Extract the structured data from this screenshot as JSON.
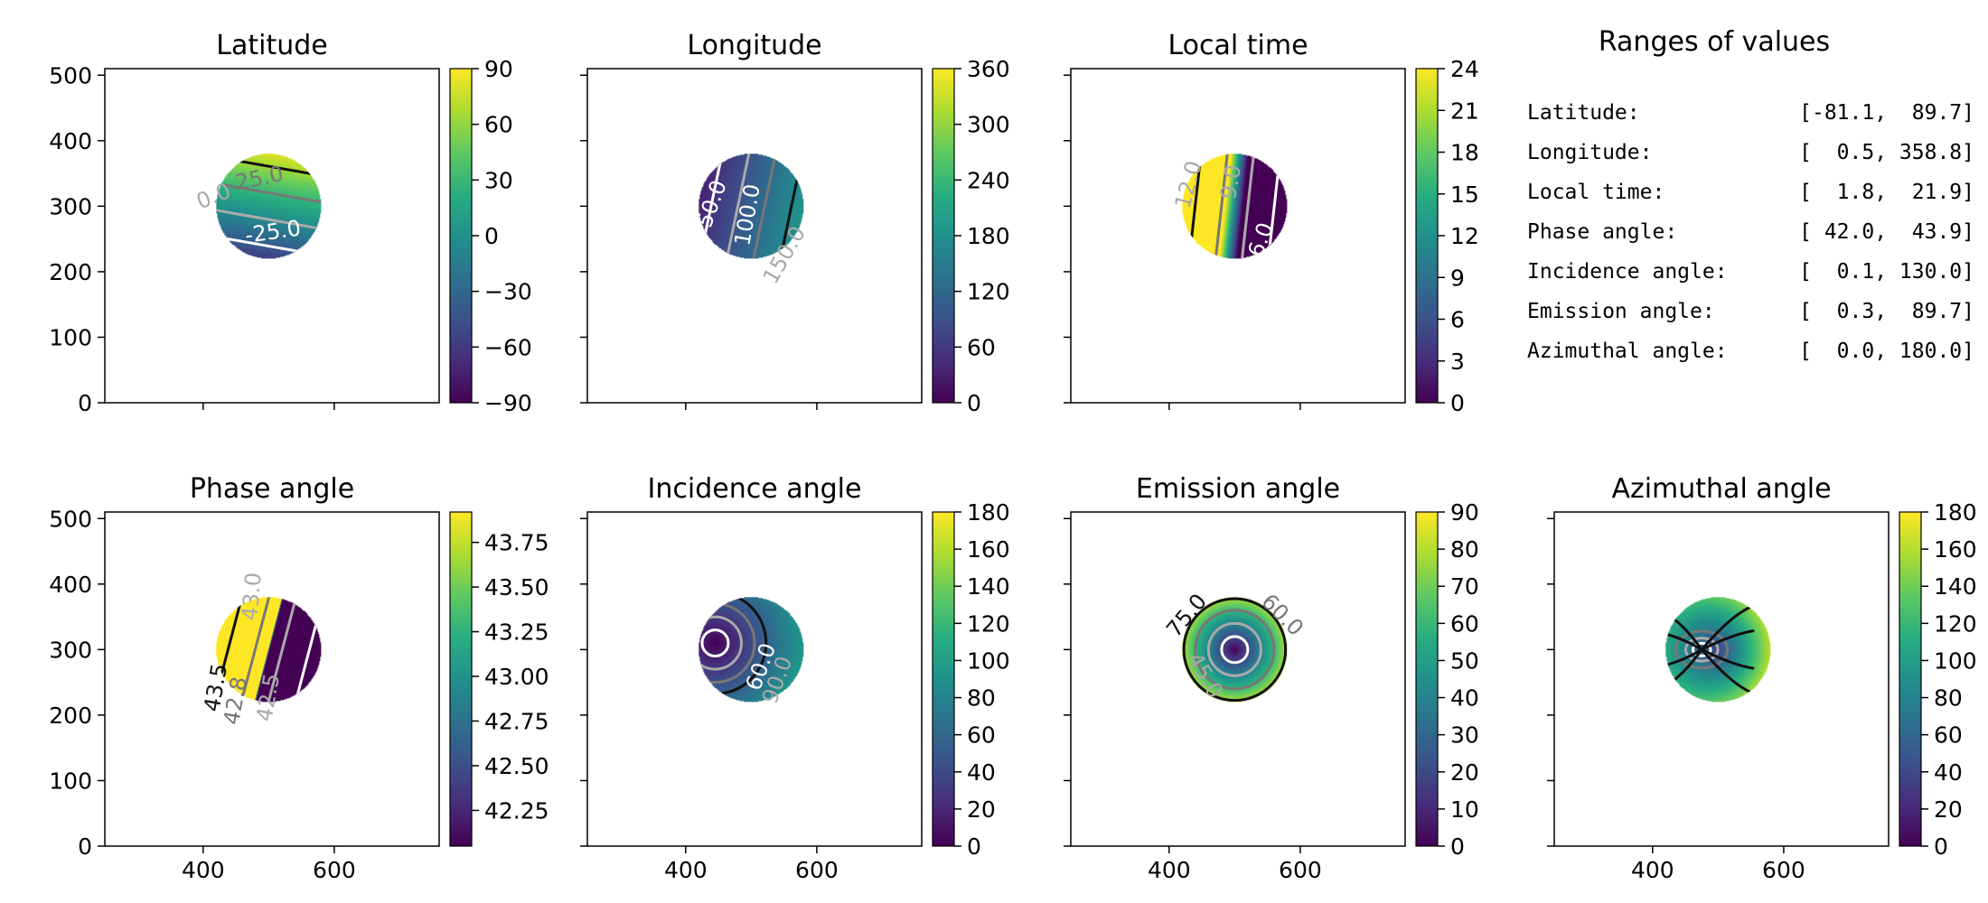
{
  "colormap": "viridis",
  "viridis_stops": [
    "#440154",
    "#472d7b",
    "#3b528b",
    "#2c728e",
    "#21918c",
    "#28ae80",
    "#5ec962",
    "#addc30",
    "#fde725"
  ],
  "contour_colors": {
    "dark": "#111111",
    "mid": "#777777",
    "light": "#aaaaaa",
    "white": "#ffffff"
  },
  "ranges_panel": {
    "title": "Ranges of values",
    "rows": [
      {
        "label": "Latitude:",
        "value": "[-81.1,  89.7]"
      },
      {
        "label": "Longitude:",
        "value": "[  0.5, 358.8]"
      },
      {
        "label": "Local time:",
        "value": "[  1.8,  21.9]"
      },
      {
        "label": "Phase angle:",
        "value": "[ 42.0,  43.9]"
      },
      {
        "label": "Incidence angle:",
        "value": "[  0.1, 130.0]"
      },
      {
        "label": "Emission angle:",
        "value": "[  0.3,  89.7]"
      },
      {
        "label": "Azimuthal angle:",
        "value": "[  0.0, 180.0]"
      }
    ]
  },
  "chart_data": [
    {
      "type": "heatmap",
      "title": "Latitude",
      "xlim": [
        250,
        760
      ],
      "ylim": [
        0,
        510
      ],
      "xticks": [
        400,
        600
      ],
      "yticks": [
        0,
        100,
        200,
        300,
        400,
        500
      ],
      "show_xticklabels": false,
      "disc": {
        "cx": 500,
        "cy": 300,
        "r": 80
      },
      "colorbar": {
        "min": -90,
        "max": 90,
        "ticks": [
          "-90",
          "-60",
          "-30",
          "0",
          "30",
          "60",
          "90"
        ],
        "tick_values": [
          -90,
          -60,
          -30,
          0,
          30,
          60,
          90
        ]
      },
      "field": {
        "kind": "linear",
        "c": 12,
        "gx": 0.15,
        "gy": 0.85
      },
      "contour_labels": [
        {
          "text": "25.0",
          "x": 488,
          "y": 332,
          "rot": -12,
          "color": "mid"
        },
        {
          "text": "-25.0",
          "x": 508,
          "y": 250,
          "rot": -8,
          "color": "white"
        },
        {
          "text": "0.0",
          "x": 420,
          "y": 305,
          "rot": -22,
          "color": "light"
        }
      ]
    },
    {
      "type": "heatmap",
      "title": "Longitude",
      "xlim": [
        250,
        760
      ],
      "ylim": [
        0,
        510
      ],
      "xticks": [
        400,
        600
      ],
      "yticks": [
        0,
        100,
        200,
        300,
        400,
        500
      ],
      "show_xticklabels": false,
      "disc": {
        "cx": 500,
        "cy": 300,
        "r": 80
      },
      "colorbar": {
        "min": 0,
        "max": 360,
        "ticks": [
          "0",
          "60",
          "120",
          "180",
          "240",
          "300",
          "360"
        ],
        "tick_values": [
          0,
          60,
          120,
          180,
          240,
          300,
          360
        ]
      },
      "field": {
        "kind": "linear",
        "c": 110,
        "gx": 0.95,
        "gy": -0.2
      },
      "contour_labels": [
        {
          "text": "50.0",
          "x": 450,
          "y": 300,
          "rot": -70,
          "color": "white"
        },
        {
          "text": "100.0",
          "x": 505,
          "y": 285,
          "rot": -80,
          "color": "white"
        },
        {
          "text": "150.0",
          "x": 560,
          "y": 220,
          "rot": -60,
          "color": "light"
        }
      ]
    },
    {
      "type": "heatmap",
      "title": "Local time",
      "xlim": [
        250,
        760
      ],
      "ylim": [
        0,
        510
      ],
      "xticks": [
        400,
        600
      ],
      "yticks": [
        0,
        100,
        200,
        300,
        400,
        500
      ],
      "show_xticklabels": false,
      "disc": {
        "cx": 500,
        "cy": 300,
        "r": 80
      },
      "colorbar": {
        "min": 0,
        "max": 24,
        "ticks": [
          "0",
          "3",
          "6",
          "9",
          "12",
          "15",
          "18",
          "21",
          "24"
        ],
        "tick_values": [
          0,
          3,
          6,
          9,
          12,
          15,
          18,
          21,
          24
        ]
      },
      "field": {
        "kind": "linear",
        "c": 11,
        "gx": -0.9,
        "gy": 0.1
      },
      "contour_labels": [
        {
          "text": "12.0",
          "x": 440,
          "y": 330,
          "rot": -75,
          "color": "light"
        },
        {
          "text": "9.0",
          "x": 505,
          "y": 335,
          "rot": -80,
          "color": "light"
        },
        {
          "text": "6.0",
          "x": 550,
          "y": 245,
          "rot": -70,
          "color": "white"
        }
      ]
    },
    {
      "type": "heatmap",
      "title": "Phase angle",
      "xlim": [
        250,
        760
      ],
      "ylim": [
        0,
        510
      ],
      "xticks": [
        400,
        600
      ],
      "yticks": [
        0,
        100,
        200,
        300,
        400,
        500
      ],
      "show_xticklabels": true,
      "disc": {
        "cx": 500,
        "cy": 300,
        "r": 80
      },
      "colorbar": {
        "min": 42.05,
        "max": 43.92,
        "ticks": [
          "42.25",
          "42.50",
          "42.75",
          "43.00",
          "43.25",
          "43.50",
          "43.75"
        ],
        "tick_values": [
          42.25,
          42.5,
          42.75,
          43.0,
          43.25,
          43.5,
          43.75
        ]
      },
      "field": {
        "kind": "linear",
        "c": 42.95,
        "gx": -0.95,
        "gy": 0.25
      },
      "contour_labels": [
        {
          "text": "43.0",
          "x": 485,
          "y": 380,
          "rot": -85,
          "color": "light"
        },
        {
          "text": "43.5",
          "x": 430,
          "y": 240,
          "rot": -80,
          "color": "dark"
        },
        {
          "text": "42.8",
          "x": 460,
          "y": 220,
          "rot": -80,
          "color": "mid"
        },
        {
          "text": "42.5",
          "x": 510,
          "y": 225,
          "rot": -80,
          "color": "light"
        }
      ]
    },
    {
      "type": "heatmap",
      "title": "Incidence angle",
      "xlim": [
        250,
        760
      ],
      "ylim": [
        0,
        510
      ],
      "xticks": [
        400,
        600
      ],
      "yticks": [
        0,
        100,
        200,
        300,
        400,
        500
      ],
      "show_xticklabels": true,
      "disc": {
        "cx": 500,
        "cy": 300,
        "r": 80
      },
      "colorbar": {
        "min": 0,
        "max": 180,
        "ticks": [
          "0",
          "20",
          "40",
          "60",
          "80",
          "100",
          "120",
          "140",
          "160",
          "180"
        ],
        "tick_values": [
          0,
          20,
          40,
          60,
          80,
          100,
          120,
          140,
          160,
          180
        ]
      },
      "field": {
        "kind": "radial",
        "center": [
          445,
          310
        ],
        "c": 0,
        "k": 0.72
      },
      "contour_labels": [
        {
          "text": "60.0",
          "x": 525,
          "y": 270,
          "rot": -70,
          "color": "white"
        },
        {
          "text": "90.0",
          "x": 550,
          "y": 250,
          "rot": -70,
          "color": "light"
        }
      ]
    },
    {
      "type": "heatmap",
      "title": "Emission angle",
      "xlim": [
        250,
        760
      ],
      "ylim": [
        0,
        510
      ],
      "xticks": [
        400,
        600
      ],
      "yticks": [
        0,
        100,
        200,
        300,
        400,
        500
      ],
      "show_xticklabels": true,
      "disc": {
        "cx": 500,
        "cy": 300,
        "r": 80
      },
      "colorbar": {
        "min": 0,
        "max": 90,
        "ticks": [
          "0",
          "10",
          "20",
          "30",
          "40",
          "50",
          "60",
          "70",
          "80",
          "90"
        ],
        "tick_values": [
          0,
          10,
          20,
          30,
          40,
          50,
          60,
          70,
          80,
          90
        ]
      },
      "field": {
        "kind": "radial",
        "center": [
          500,
          300
        ],
        "c": 0,
        "k": 1.0
      },
      "contour_labels": [
        {
          "text": "75.0",
          "x": 435,
          "y": 345,
          "rot": -50,
          "color": "dark"
        },
        {
          "text": "60.0",
          "x": 565,
          "y": 345,
          "rot": 45,
          "color": "mid"
        },
        {
          "text": "45.0",
          "x": 445,
          "y": 255,
          "rot": 60,
          "color": "light"
        }
      ]
    },
    {
      "type": "heatmap",
      "title": "Azimuthal angle",
      "xlim": [
        250,
        760
      ],
      "ylim": [
        0,
        510
      ],
      "xticks": [
        400,
        600
      ],
      "yticks": [
        0,
        100,
        200,
        300,
        400,
        500
      ],
      "show_xticklabels": true,
      "disc": {
        "cx": 500,
        "cy": 300,
        "r": 80
      },
      "colorbar": {
        "min": 0,
        "max": 180,
        "ticks": [
          "0",
          "20",
          "40",
          "60",
          "80",
          "100",
          "120",
          "140",
          "160",
          "180"
        ],
        "tick_values": [
          0,
          20,
          40,
          60,
          80,
          100,
          120,
          140,
          160,
          180
        ]
      },
      "field": {
        "kind": "radial",
        "center": [
          475,
          300
        ],
        "c": 55,
        "k": 1.6
      },
      "contour_labels": []
    }
  ]
}
